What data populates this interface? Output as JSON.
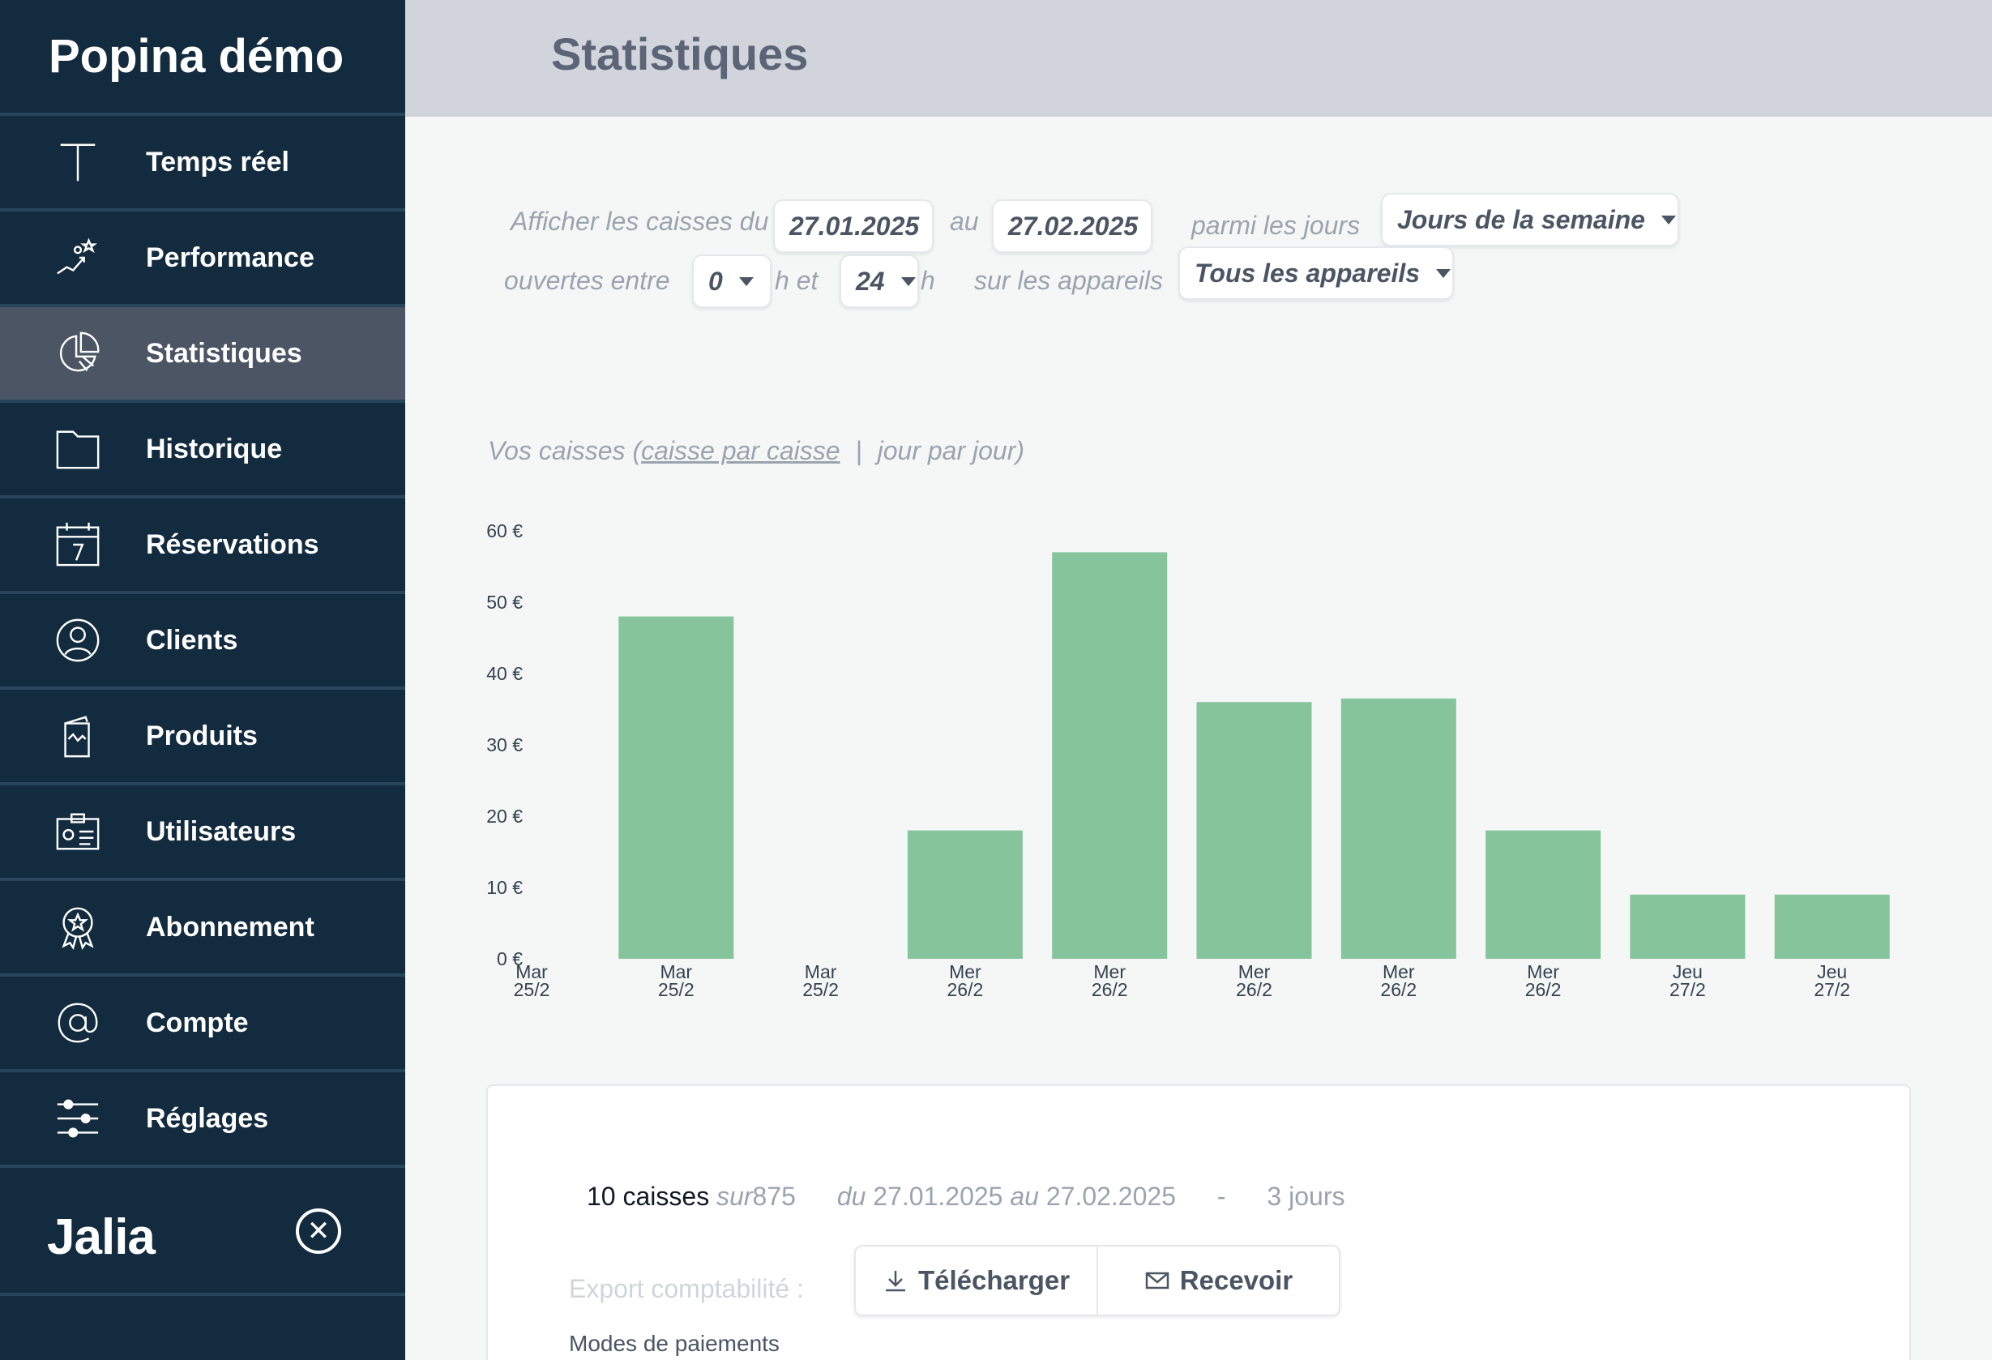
{
  "sidebar": {
    "brand": "Popina démo",
    "items": [
      {
        "label": "Temps réel",
        "icon": "text-t-icon"
      },
      {
        "label": "Performance",
        "icon": "performance-icon"
      },
      {
        "label": "Statistiques",
        "icon": "pie-chart-icon",
        "active": true
      },
      {
        "label": "Historique",
        "icon": "folder-icon"
      },
      {
        "label": "Réservations",
        "icon": "calendar-icon"
      },
      {
        "label": "Clients",
        "icon": "user-circle-icon"
      },
      {
        "label": "Produits",
        "icon": "product-icon"
      },
      {
        "label": "Utilisateurs",
        "icon": "id-card-icon"
      },
      {
        "label": "Abonnement",
        "icon": "badge-icon"
      },
      {
        "label": "Compte",
        "icon": "at-icon"
      },
      {
        "label": "Réglages",
        "icon": "sliders-icon"
      }
    ],
    "footer_logo": "Jalia"
  },
  "header": {
    "title": "Statistiques"
  },
  "filters": {
    "label_show": "Afficher les caisses du",
    "date_from": "27.01.2025",
    "label_to": "au",
    "date_to": "27.02.2025",
    "label_days": "parmi les jours",
    "days_select": "Jours de la semaine",
    "label_open": "ouvertes entre",
    "hour_from": "0",
    "label_h_and": "h et",
    "hour_to": "24",
    "label_h": "h",
    "label_devices": "sur les appareils",
    "devices_select": "Tous les appareils"
  },
  "view": {
    "prefix": "Vos caisses (",
    "by_register": "caisse par caisse",
    "divider": "|",
    "by_day": "jour par jour",
    "suffix": ")"
  },
  "chart_data": {
    "type": "bar",
    "categories": [
      "Mar 25/2",
      "Mar 25/2",
      "Mar 25/2",
      "Mer 26/2",
      "Mer 26/2",
      "Mer 26/2",
      "Mer 26/2",
      "Mer 26/2",
      "Jeu 27/2",
      "Jeu 27/2"
    ],
    "values": [
      0,
      48,
      0,
      18,
      57,
      36,
      36.5,
      18,
      9,
      9
    ],
    "ylim": [
      0,
      60
    ],
    "yticks": [
      0,
      10,
      20,
      30,
      40,
      50,
      60
    ],
    "ytick_labels": [
      "0 €",
      "10 €",
      "20 €",
      "30 €",
      "40 €",
      "50 €",
      "60 €"
    ],
    "color": "#86c49c",
    "title": "",
    "xlabel": "",
    "ylabel": "",
    "grid": false
  },
  "summary": {
    "count": "10 caisses",
    "on": "sur",
    "total": "875",
    "from_label": "du",
    "from": "27.01.2025",
    "to_label": "au",
    "to": "27.02.2025",
    "dash": "-",
    "days": "3 jours",
    "export_label": "Export comptabilité :",
    "download": "Télécharger",
    "receive": "Recevoir",
    "payment_modes": "Modes de paiements"
  },
  "colors": {
    "sidebar_bg": "#132b3f",
    "sidebar_active": "#4b5563",
    "header_bg": "#d1d5db",
    "bar": "#86c49c"
  }
}
